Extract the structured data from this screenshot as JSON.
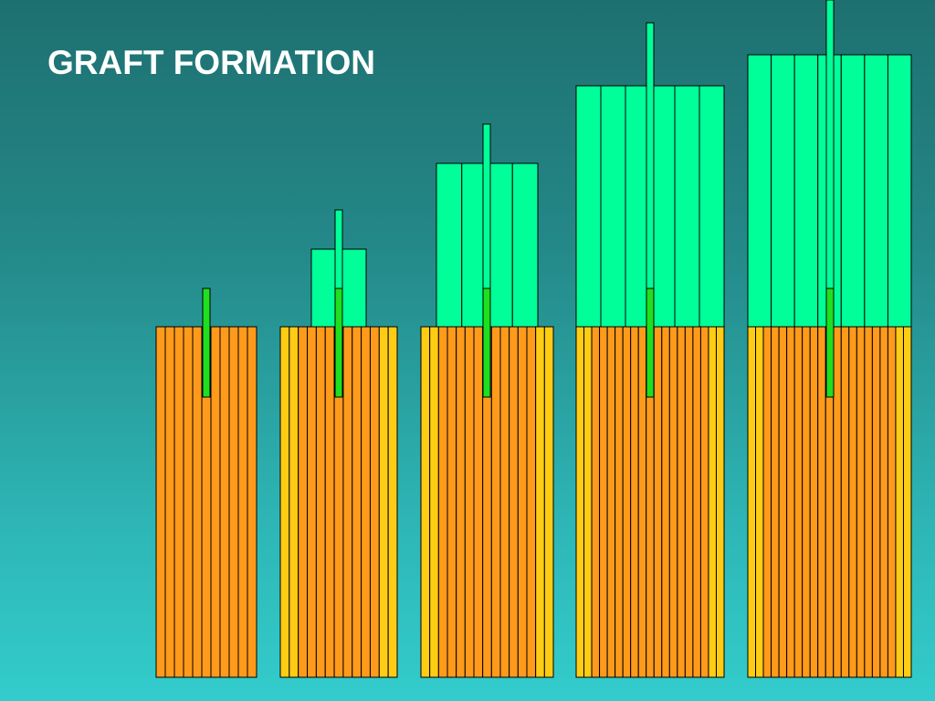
{
  "slide": {
    "title": "GRAFT FORMATION"
  },
  "diagram": {
    "stage_count": 5,
    "stages": [
      {
        "stage": 1,
        "base_layers": 11,
        "graft_layers": 0,
        "base_palette": "orange"
      },
      {
        "stage": 2,
        "base_layers": 13,
        "graft_layers": 1,
        "base_palette": "mixed"
      },
      {
        "stage": 3,
        "base_layers": 15,
        "graft_layers": 4,
        "base_palette": "mixed"
      },
      {
        "stage": 4,
        "base_layers": 19,
        "graft_layers": 6,
        "base_palette": "mixed"
      },
      {
        "stage": 5,
        "base_layers": 21,
        "graft_layers": 7,
        "base_palette": "mixed"
      }
    ],
    "colors": {
      "base_orange": "#ff9a1a",
      "base_yellow": "#ffcc14",
      "graft_layer": "#00ff99",
      "initiator_strand": "#1ee01e",
      "outline": "#000000",
      "background_top": "#1e7070",
      "background_bottom": "#33cccc",
      "title_text": "#ffffff"
    }
  }
}
